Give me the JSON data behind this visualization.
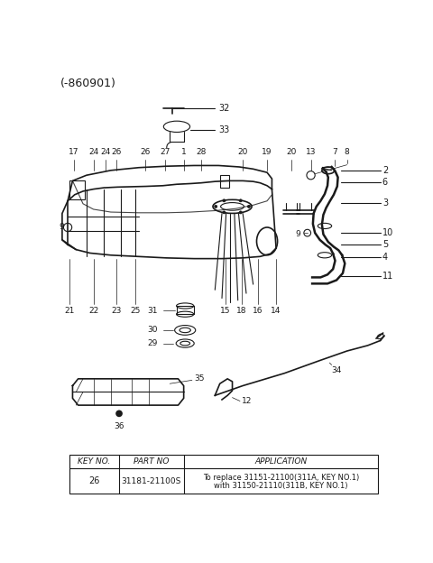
{
  "title": "(-860901)",
  "bg_color": "#ffffff",
  "line_color": "#1a1a1a",
  "table": {
    "headers": [
      "KEY NO.",
      "PART NO",
      "APPLICATION"
    ],
    "row": [
      "26",
      "31181-21100S",
      "To replace 31151-21100(311A, KEY NO.1)\nwith 31150-21110(311B, KEY NO.1)"
    ]
  }
}
